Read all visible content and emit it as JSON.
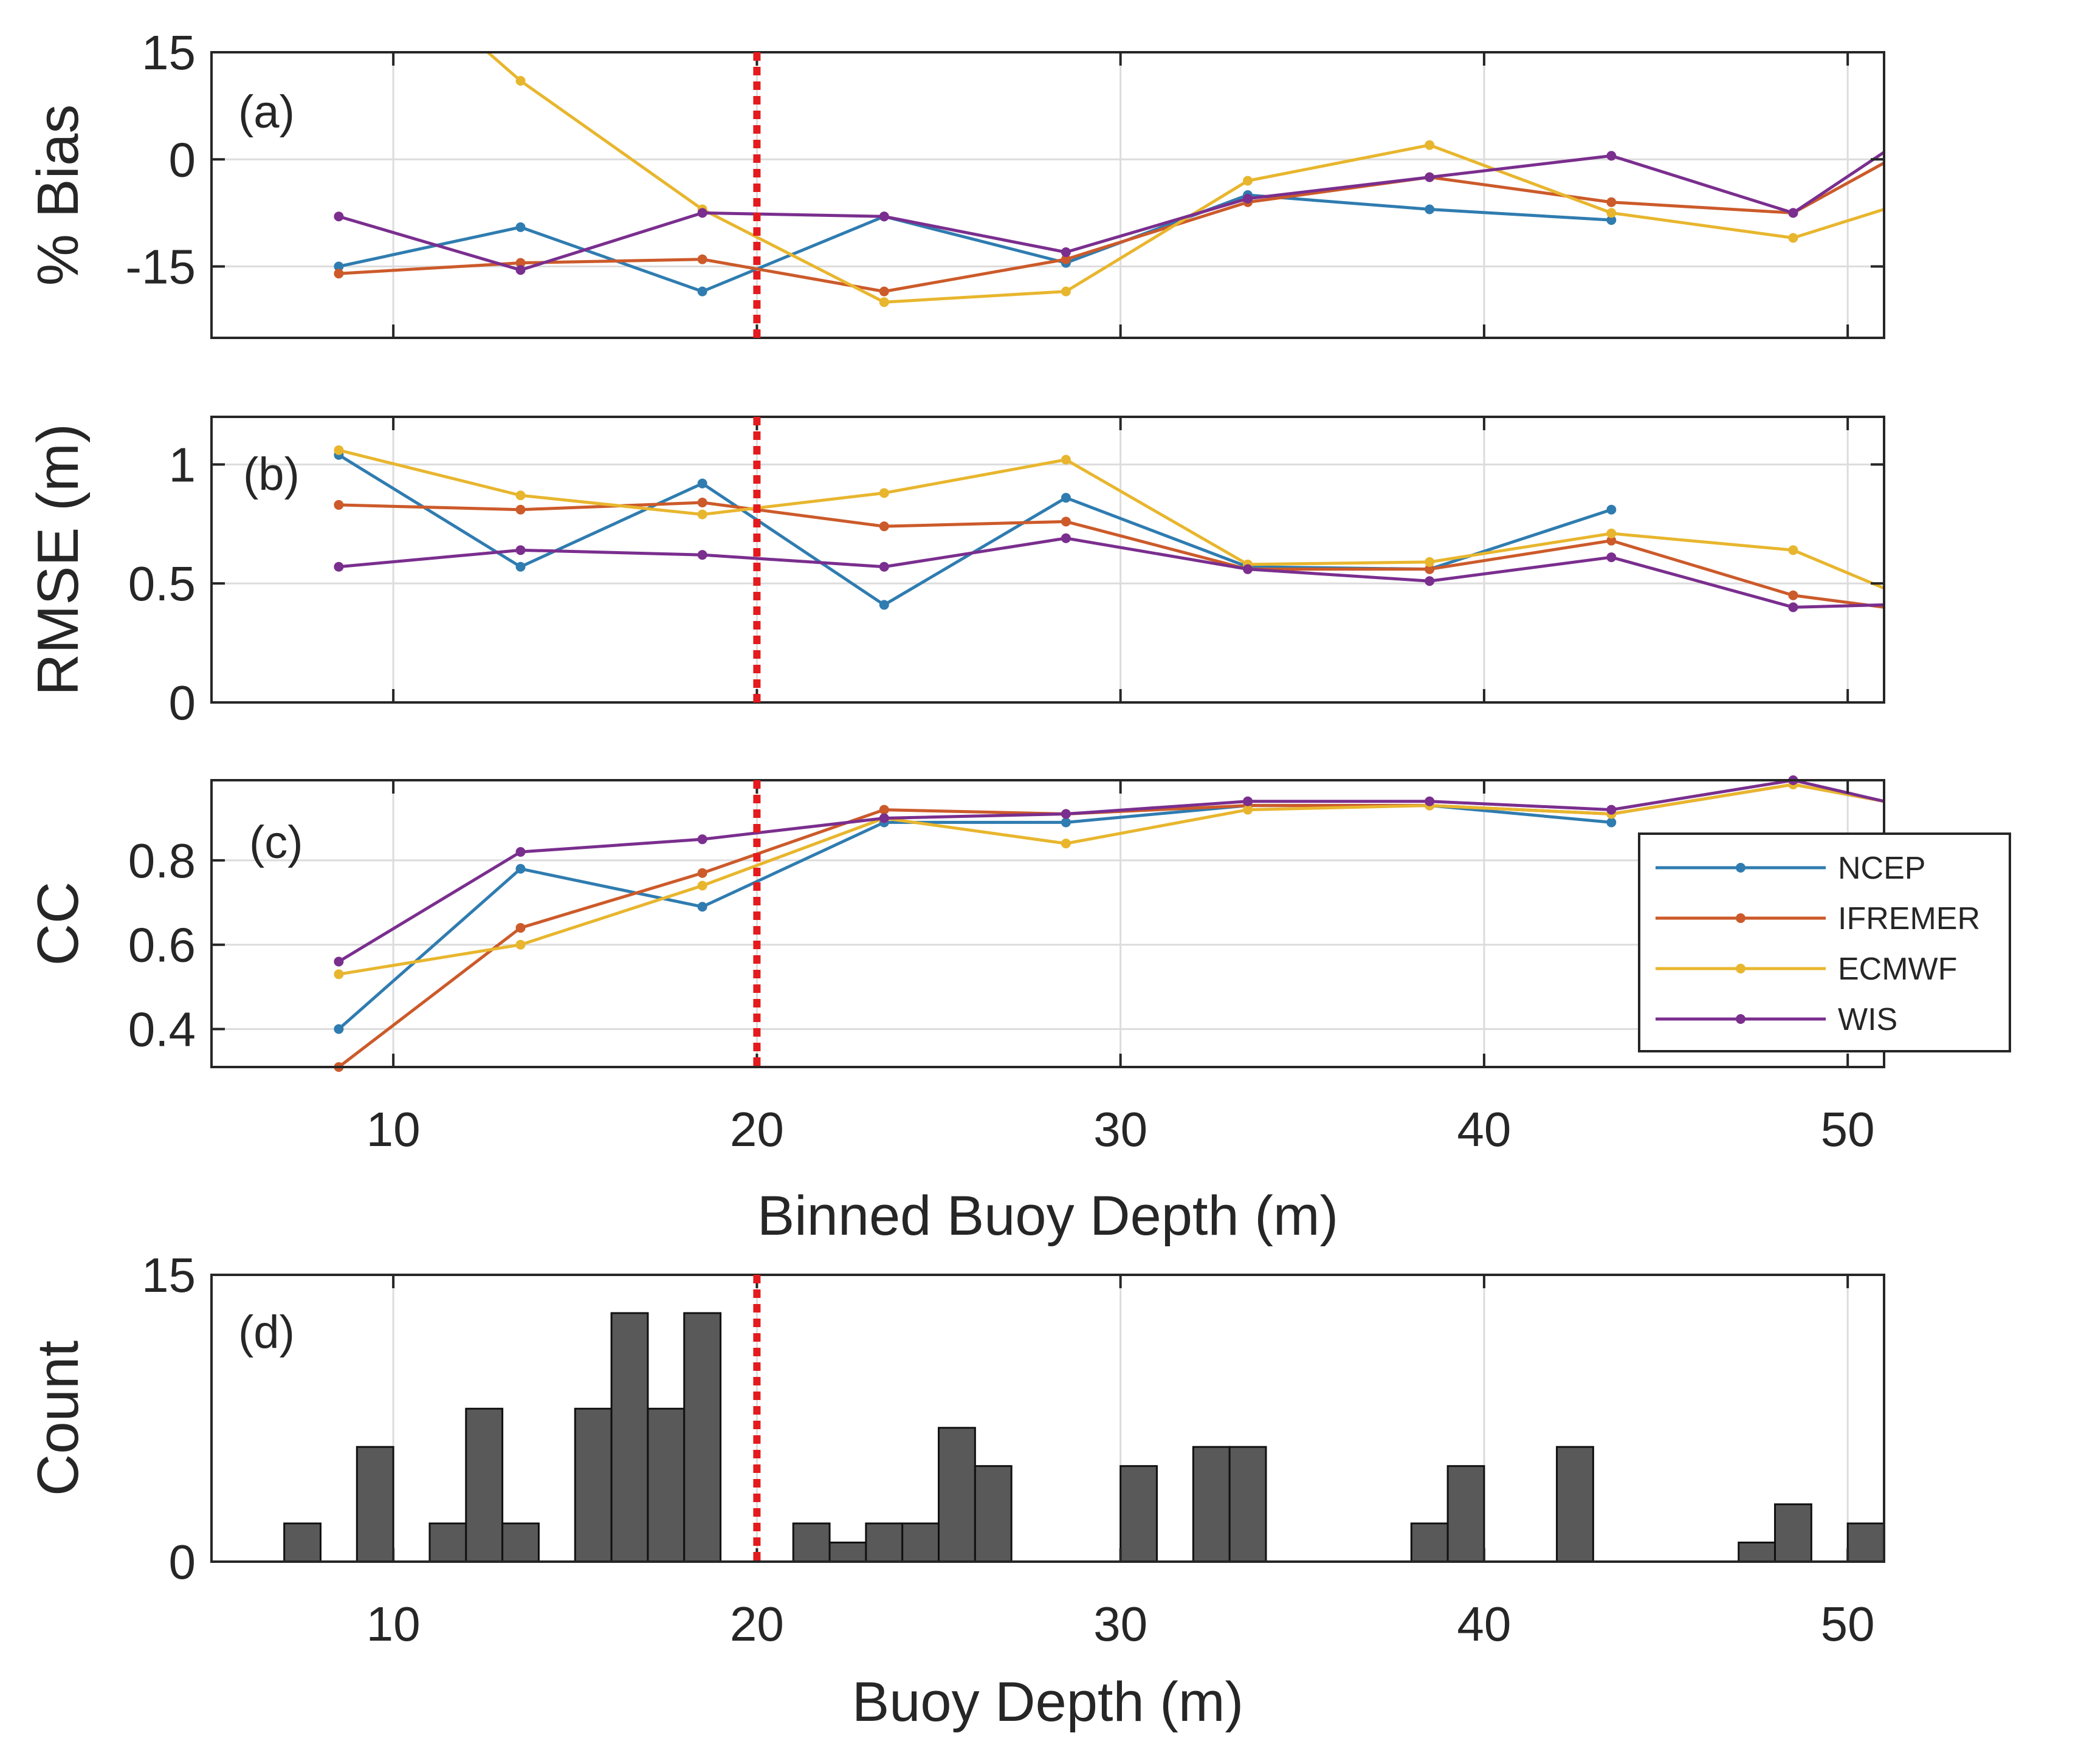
{
  "colors": {
    "NCEP": "#2f7cb0",
    "IFREMER": "#cc5a2a",
    "ECMWF": "#e8b62e",
    "WIS": "#7a2e8e",
    "threshold": "#e41a1c",
    "bars": "#595959"
  },
  "threshold_depth": 20,
  "chart_data": [
    {
      "id": "a",
      "type": "line",
      "panel_label": "(a)",
      "ylabel": "% Bias",
      "xlim": [
        5,
        51
      ],
      "ylim": [
        -25,
        15
      ],
      "yticks": [
        15,
        0,
        -15
      ],
      "ytick_labels": [
        "15",
        "0",
        "-15"
      ],
      "xticks": [
        10,
        20,
        30,
        40,
        50
      ],
      "x": [
        8.5,
        13.5,
        18.5,
        23.5,
        28.5,
        33.5,
        38.5,
        43.5,
        48.5,
        51
      ],
      "series": [
        {
          "name": "NCEP",
          "values": [
            -15,
            -9.5,
            -18.5,
            -8,
            -14.5,
            -5,
            -7,
            -8.5,
            null,
            null
          ]
        },
        {
          "name": "IFREMER",
          "values": [
            -16,
            -14.5,
            -14,
            -18.5,
            -14,
            -6,
            -2.5,
            -6,
            -7.5,
            -0.5
          ]
        },
        {
          "name": "ECMWF",
          "values": [
            null,
            11,
            -7,
            -20,
            -18.5,
            -3,
            2,
            -7.5,
            -11,
            -7
          ]
        },
        {
          "name": "WIS",
          "values": [
            -8,
            -15.5,
            -7.5,
            -8,
            -13,
            -5.5,
            -2.5,
            0.5,
            -7.5,
            1
          ]
        }
      ],
      "ecmwf_entry": {
        "x": 12.6,
        "y": 15
      }
    },
    {
      "id": "b",
      "type": "line",
      "panel_label": "(b)",
      "ylabel": "RMSE (m)",
      "xlim": [
        5,
        51
      ],
      "ylim": [
        0,
        1.2
      ],
      "yticks": [
        1,
        0.5,
        0
      ],
      "ytick_labels": [
        "1",
        "0.5",
        "0"
      ],
      "xticks": [
        10,
        20,
        30,
        40,
        50
      ],
      "x": [
        8.5,
        13.5,
        18.5,
        23.5,
        28.5,
        33.5,
        38.5,
        43.5,
        48.5,
        51
      ],
      "series": [
        {
          "name": "NCEP",
          "values": [
            1.04,
            0.57,
            0.92,
            0.41,
            0.86,
            0.57,
            0.56,
            0.81,
            null,
            null
          ]
        },
        {
          "name": "IFREMER",
          "values": [
            0.83,
            0.81,
            0.84,
            0.74,
            0.76,
            0.56,
            0.56,
            0.68,
            0.45,
            0.4
          ]
        },
        {
          "name": "ECMWF",
          "values": [
            1.06,
            0.87,
            0.79,
            0.88,
            1.02,
            0.58,
            0.59,
            0.71,
            0.64,
            0.48
          ]
        },
        {
          "name": "WIS",
          "values": [
            0.57,
            0.64,
            0.62,
            0.57,
            0.69,
            0.56,
            0.51,
            0.61,
            0.4,
            0.41
          ]
        }
      ]
    },
    {
      "id": "c",
      "type": "line",
      "panel_label": "(c)",
      "ylabel": "CC",
      "xlabel": "Binned Buoy Depth (m)",
      "xlim": [
        5,
        51
      ],
      "ylim": [
        0.31,
        0.99
      ],
      "yticks": [
        0.8,
        0.6,
        0.4
      ],
      "ytick_labels": [
        "0.8",
        "0.6",
        "0.4"
      ],
      "xticks": [
        10,
        20,
        30,
        40,
        50
      ],
      "xtick_labels": [
        "10",
        "20",
        "30",
        "40",
        "50"
      ],
      "x": [
        8.5,
        13.5,
        18.5,
        23.5,
        28.5,
        33.5,
        38.5,
        43.5,
        48.5,
        51
      ],
      "series": [
        {
          "name": "NCEP",
          "values": [
            0.4,
            0.78,
            0.69,
            0.89,
            0.89,
            0.93,
            0.93,
            0.89,
            null,
            null
          ]
        },
        {
          "name": "IFREMER",
          "values": [
            0.31,
            0.64,
            0.77,
            0.92,
            0.91,
            0.93,
            0.93,
            0.91,
            0.98,
            0.94
          ]
        },
        {
          "name": "ECMWF",
          "values": [
            0.53,
            0.6,
            0.74,
            0.9,
            0.84,
            0.92,
            0.93,
            0.91,
            0.98,
            0.94
          ]
        },
        {
          "name": "WIS",
          "values": [
            0.56,
            0.82,
            0.85,
            0.9,
            0.91,
            0.94,
            0.94,
            0.92,
            0.99,
            0.94
          ]
        }
      ],
      "legend": {
        "position": "lower-right",
        "entries": [
          "NCEP",
          "IFREMER",
          "ECMWF",
          "WIS"
        ]
      }
    },
    {
      "id": "d",
      "type": "bar",
      "panel_label": "(d)",
      "ylabel": "Count",
      "xlabel": "Buoy Depth (m)",
      "xlim": [
        5,
        51
      ],
      "ylim": [
        0,
        15
      ],
      "yticks": [
        15,
        0
      ],
      "ytick_labels": [
        "15",
        "0"
      ],
      "xticks": [
        10,
        20,
        30,
        40,
        50
      ],
      "xtick_labels": [
        "10",
        "20",
        "30",
        "40",
        "50"
      ],
      "bin_width": 1,
      "bins": [
        {
          "start": 7,
          "count": 2
        },
        {
          "start": 9,
          "count": 6
        },
        {
          "start": 11,
          "count": 2
        },
        {
          "start": 12,
          "count": 8
        },
        {
          "start": 13,
          "count": 2
        },
        {
          "start": 15,
          "count": 8
        },
        {
          "start": 16,
          "count": 13
        },
        {
          "start": 17,
          "count": 8
        },
        {
          "start": 18,
          "count": 13
        },
        {
          "start": 21,
          "count": 2
        },
        {
          "start": 22,
          "count": 1
        },
        {
          "start": 23,
          "count": 2
        },
        {
          "start": 24,
          "count": 2
        },
        {
          "start": 25,
          "count": 7
        },
        {
          "start": 26,
          "count": 5
        },
        {
          "start": 30,
          "count": 5
        },
        {
          "start": 32,
          "count": 6
        },
        {
          "start": 33,
          "count": 6
        },
        {
          "start": 38,
          "count": 2
        },
        {
          "start": 39,
          "count": 5
        },
        {
          "start": 42,
          "count": 6
        },
        {
          "start": 47,
          "count": 1
        },
        {
          "start": 48,
          "count": 3
        },
        {
          "start": 50,
          "count": 2
        }
      ]
    }
  ]
}
